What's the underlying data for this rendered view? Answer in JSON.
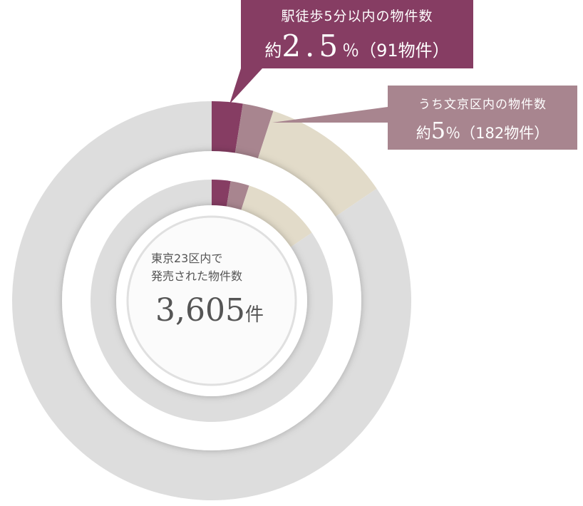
{
  "chart_data": {
    "type": "pie",
    "title": "",
    "center": {
      "label_line1": "東京23区内で",
      "label_line2": "発売された物件数",
      "total_value": "3,605",
      "total_unit": "件",
      "total": 3605
    },
    "series": [
      {
        "ring": "outer",
        "segments": [
          {
            "share_pct": 2.5,
            "color": "#863d63"
          },
          {
            "share_pct": 2.5,
            "color": "#a8858f"
          },
          {
            "share_pct": 10.5,
            "color": "#e2dbc9"
          },
          {
            "share_pct": 84.5,
            "color": "#dddddd"
          }
        ]
      },
      {
        "ring": "inner",
        "segments": [
          {
            "share_pct": 2.5,
            "color": "#863d63"
          },
          {
            "share_pct": 2.5,
            "color": "#a8858f"
          },
          {
            "share_pct": 10.5,
            "color": "#e2dbc9"
          },
          {
            "share_pct": 84.5,
            "color": "#dddddd"
          }
        ]
      }
    ],
    "annotations": [
      {
        "caption": "駅徒歩5分以内の物件数",
        "prefix": "約",
        "value": "2.5",
        "unit": "％",
        "count_text": "（91物件）",
        "count": 91,
        "color": "#863d63"
      },
      {
        "caption": "うち文京区内の物件数",
        "prefix": "約",
        "value": "5",
        "unit": "％",
        "count_text": "（182物件）",
        "count": 182,
        "color": "#a8858f"
      }
    ]
  }
}
